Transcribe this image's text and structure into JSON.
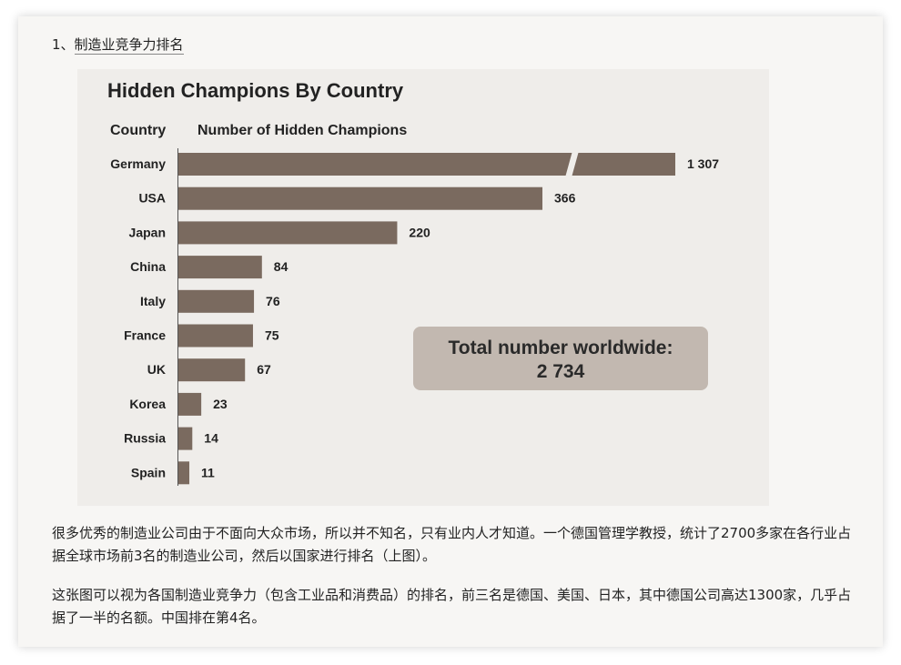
{
  "heading": {
    "number": "1、",
    "link_text": "制造业竞争力排名"
  },
  "chart_data": {
    "type": "bar",
    "orientation": "horizontal",
    "title": "Hidden Champions By Country",
    "category_header": "Country",
    "value_header": "Number of Hidden Champions",
    "categories": [
      "Germany",
      "USA",
      "Japan",
      "China",
      "Italy",
      "France",
      "UK",
      "Korea",
      "Russia",
      "Spain"
    ],
    "values": [
      1307,
      366,
      220,
      84,
      76,
      75,
      67,
      23,
      14,
      11
    ],
    "value_labels": [
      "1 307",
      "366",
      "220",
      "84",
      "76",
      "75",
      "67",
      "23",
      "14",
      "11"
    ],
    "broken_bar": "Germany",
    "bar_color": "#7a6a5f",
    "callout": {
      "line1": "Total number worldwide:",
      "line2": "2 734"
    }
  },
  "paragraphs": [
    "很多优秀的制造业公司由于不面向大众市场，所以并不知名，只有业内人才知道。一个德国管理学教授，统计了2700多家在各行业占据全球市场前3名的制造业公司，然后以国家进行排名（上图）。",
    "这张图可以视为各国制造业竞争力（包含工业品和消费品）的排名，前三名是德国、美国、日本，其中德国公司高达1300家，几乎占据了一半的名额。中国排在第4名。"
  ]
}
